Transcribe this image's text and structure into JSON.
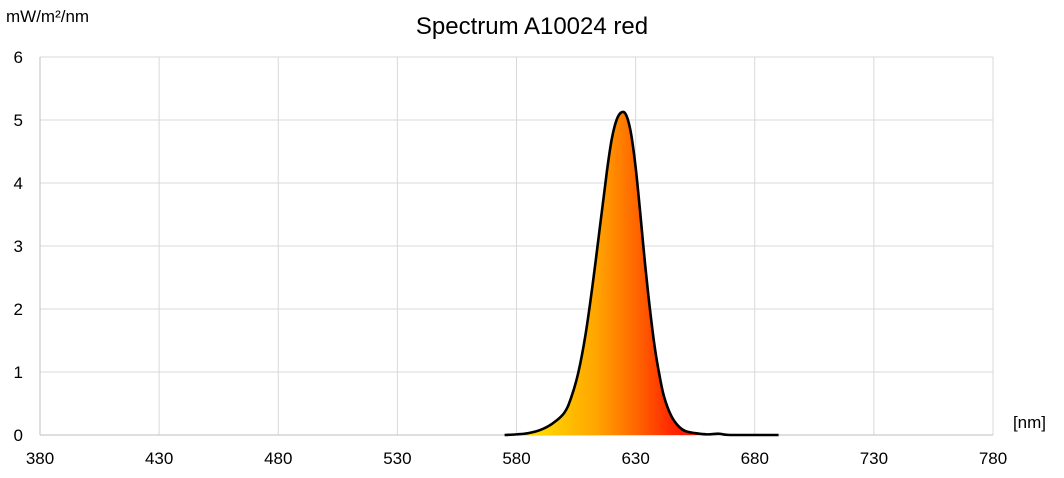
{
  "chart_data": {
    "type": "area",
    "title": "Spectrum A10024 red",
    "ylabel": "mW/m²/nm",
    "xlabel": "[nm]",
    "xlim": [
      380,
      780
    ],
    "ylim": [
      0,
      6
    ],
    "xticks": [
      380,
      430,
      480,
      530,
      580,
      630,
      680,
      730,
      780
    ],
    "yticks": [
      0,
      1,
      2,
      3,
      4,
      5,
      6
    ],
    "grid": true,
    "legend": "none",
    "series": [
      {
        "x": [
          575,
          580,
          585,
          590,
          595,
          600,
          603,
          606,
          609,
          612,
          615,
          618,
          620,
          622,
          624,
          626,
          628,
          630,
          632,
          634,
          636,
          638,
          640,
          642,
          645,
          648,
          651,
          655,
          660,
          665,
          670,
          690
        ],
        "y": [
          0.0,
          0.01,
          0.03,
          0.08,
          0.18,
          0.35,
          0.6,
          1.0,
          1.6,
          2.4,
          3.3,
          4.2,
          4.7,
          5.0,
          5.12,
          5.08,
          4.8,
          4.25,
          3.5,
          2.7,
          2.0,
          1.4,
          0.95,
          0.6,
          0.3,
          0.14,
          0.06,
          0.03,
          0.01,
          0.02,
          0.0,
          0.0
        ]
      }
    ],
    "fill_colors": [
      "#ffd700",
      "#ffa400",
      "#ff6a00",
      "#ff2a00",
      "#ff0000"
    ],
    "line_color": "#000000"
  }
}
